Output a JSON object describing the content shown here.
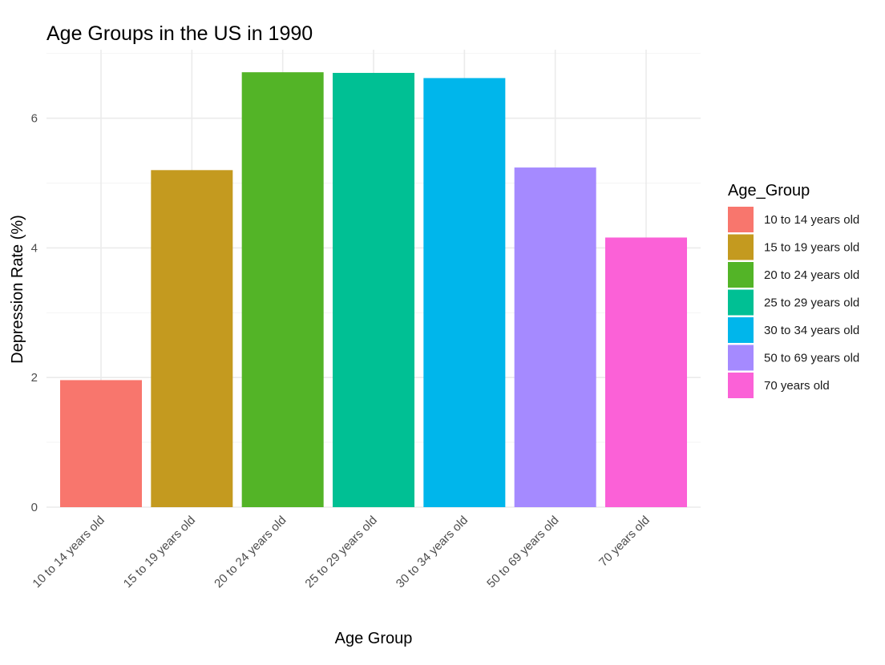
{
  "chart_data": {
    "type": "bar",
    "title": "Age Groups in the US in 1990",
    "xlabel": "Age Group",
    "ylabel": "Depression Rate (%)",
    "categories": [
      "10 to 14 years old",
      "15 to 19 years old",
      "20 to 24 years old",
      "25 to 29 years old",
      "30 to 34 years old",
      "50 to 69 years old",
      "70 years old"
    ],
    "values": [
      1.96,
      5.2,
      6.71,
      6.7,
      6.62,
      5.24,
      4.16
    ],
    "colors": [
      "#F8766D",
      "#C49A1F",
      "#53B427",
      "#00C094",
      "#00B6EB",
      "#A58AFF",
      "#FB61D7"
    ],
    "ylim": [
      0,
      7.05
    ],
    "y_ticks": [
      0,
      2,
      4,
      6
    ],
    "y_tick_labels": [
      "0",
      "2",
      "4",
      "6"
    ],
    "grid": true,
    "legend": {
      "title": "Age_Group",
      "placement": "right",
      "entries": [
        "10 to 14 years old",
        "15 to 19 years old",
        "20 to 24 years old",
        "25 to 29 years old",
        "30 to 34 years old",
        "50 to 69 years old",
        "70 years old"
      ]
    }
  }
}
